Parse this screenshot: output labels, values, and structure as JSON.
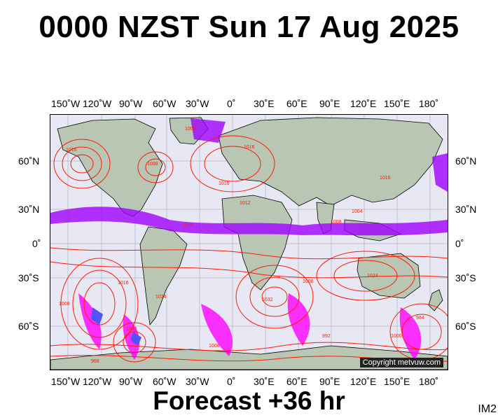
{
  "title": "0000 NZST Sun 17 Aug 2025",
  "footer": "Forecast +36 hr",
  "image_code": "IM2",
  "copyright": "Copyright metvuw.com",
  "longitude_labels": [
    "150˚W",
    "120˚W",
    "90˚W",
    "60˚W",
    "30˚W",
    "0˚",
    "30˚E",
    "60˚E",
    "90˚E",
    "120˚E",
    "150˚E",
    "180˚"
  ],
  "latitude_labels": [
    "60˚N",
    "30˚N",
    "0˚",
    "30˚S",
    "60˚S"
  ],
  "pressure_labels": [
    "1016",
    "1008",
    "1000",
    "1016",
    "1012",
    "1016",
    "1024",
    "1032",
    "1008",
    "1008",
    "1024",
    "984",
    "968",
    "992",
    "1032",
    "1008",
    "1008",
    "1012",
    "1016",
    "1004",
    "1000",
    "1016"
  ],
  "colors": {
    "ocean": "#e8e8f4",
    "land": "#b9c6b4",
    "isobar": "#ff1a00",
    "rain_purple": "#a000ff",
    "rain_magenta": "#ff00ff",
    "rain_blue": "#3030ff"
  }
}
